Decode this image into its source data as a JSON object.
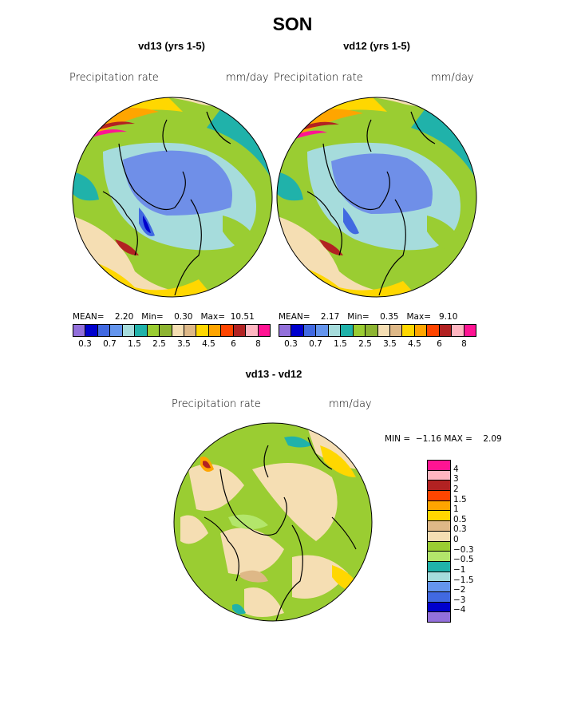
{
  "title": "SON",
  "panels": [
    {
      "subtitle": "vd13 (yrs 1-5)",
      "variable": "Precipitation rate",
      "units": "mm/day",
      "stats": {
        "mean_label": "MEAN=",
        "mean": "2.20",
        "min_label": "Min=",
        "min": "0.30",
        "max_label": "Max=",
        "max": "10.51"
      }
    },
    {
      "subtitle": "vd12 (yrs 1-5)",
      "variable": "Precipitation rate",
      "units": "mm/day",
      "stats": {
        "mean_label": "MEAN=",
        "mean": "2.17",
        "min_label": "Min=",
        "min": "0.35",
        "max_label": "Max=",
        "max": "9.10"
      }
    }
  ],
  "top_colorbar": {
    "colors": [
      "#9370db",
      "#0000cd",
      "#4169e1",
      "#6495ed",
      "#a6dcdc",
      "#20b2aa",
      "#9acd32",
      "#8db431",
      "#f5deb3",
      "#deb887",
      "#ffd700",
      "#ffa500",
      "#ff4500",
      "#b22222",
      "#ffb6c1",
      "#ff1493"
    ],
    "tick_labels": [
      "0.3",
      "0.7",
      "1.5",
      "2.5",
      "3.5",
      "4.5",
      "6",
      "8"
    ]
  },
  "diff": {
    "subtitle": "vd13 - vd12",
    "variable": "Precipitation rate",
    "units": "mm/day",
    "minmax": {
      "min_label": "MIN =",
      "min": "−1.16",
      "max_label": "MAX =",
      "max": "2.09"
    },
    "colorbar": {
      "colors": [
        "#ff1493",
        "#ffb6c1",
        "#b22222",
        "#ff4500",
        "#ffa500",
        "#ffd700",
        "#deb887",
        "#f5deb3",
        "#9acd32",
        "#b3e66b",
        "#20b2aa",
        "#a6dcdc",
        "#6495ed",
        "#4169e1",
        "#0000cd",
        "#9370db"
      ],
      "labels": [
        "4",
        "3",
        "2",
        "1.5",
        "1",
        "0.5",
        "0.3",
        "0",
        "−0.3",
        "−0.5",
        "−1",
        "−1.5",
        "−2",
        "−3",
        "−4"
      ]
    }
  },
  "map_colors": {
    "blue_light": "#6f8fe8",
    "blue_mid": "#4169e1",
    "blue_dark": "#0000cd",
    "cyan": "#a6dcdc",
    "teal": "#20b2aa",
    "lime": "#9acd32",
    "lime_light": "#b3e66b",
    "wheat": "#f5deb3",
    "tan": "#deb887",
    "yellow": "#ffd700",
    "orange": "#ffa500",
    "red": "#b22222",
    "magenta": "#ff1493",
    "pink": "#ffb6c1"
  }
}
